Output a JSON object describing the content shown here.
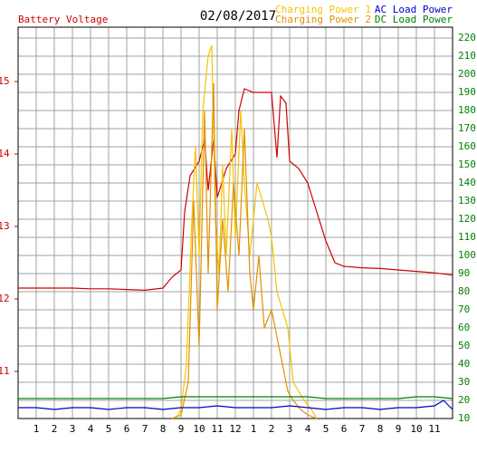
{
  "chart_data": {
    "type": "line",
    "title": "02/08/2017",
    "xlim": [
      0,
      24
    ],
    "xticks": [
      1,
      2,
      3,
      4,
      5,
      6,
      7,
      8,
      9,
      10,
      11,
      12,
      {
        "value": 13,
        "label": "1"
      },
      {
        "value": 14,
        "label": "2"
      },
      {
        "value": 15,
        "label": "3"
      },
      {
        "value": 16,
        "label": "4"
      },
      {
        "value": 17,
        "label": "5"
      },
      {
        "value": 18,
        "label": "6"
      },
      {
        "value": 19,
        "label": "7"
      },
      {
        "value": 20,
        "label": "8"
      },
      {
        "value": 21,
        "label": "9"
      },
      {
        "value": 22,
        "label": "10"
      },
      {
        "value": 23,
        "label": "11"
      }
    ],
    "ylim": [
      10.35,
      15.75
    ],
    "yticks": [
      11,
      12,
      13,
      14,
      15
    ],
    "y2lim": [
      10,
      226
    ],
    "y2ticks": [
      10,
      20,
      30,
      40,
      50,
      60,
      70,
      80,
      90,
      100,
      110,
      120,
      130,
      140,
      150,
      160,
      170,
      180,
      190,
      200,
      210,
      220
    ],
    "grid": true,
    "series": [
      {
        "name": "Battery Voltage",
        "color": "#d00000",
        "axis": "y",
        "x": [
          0,
          1,
          2,
          3,
          4,
          5,
          6,
          7,
          8,
          8.5,
          9,
          9.2,
          9.5,
          10,
          10.3,
          10.5,
          10.8,
          11,
          11.5,
          12,
          12.2,
          12.5,
          13,
          13.5,
          14,
          14.3,
          14.5,
          14.8,
          15,
          15.5,
          16,
          16.5,
          17,
          17.5,
          18,
          19,
          20,
          21,
          22,
          23,
          24
        ],
        "values": [
          12.15,
          12.15,
          12.15,
          12.15,
          12.14,
          12.14,
          12.13,
          12.12,
          12.15,
          12.3,
          12.4,
          13.2,
          13.7,
          13.9,
          14.2,
          13.5,
          14.2,
          13.4,
          13.8,
          14.0,
          14.6,
          14.9,
          14.85,
          14.85,
          14.85,
          13.95,
          14.8,
          14.7,
          13.9,
          13.8,
          13.6,
          13.2,
          12.8,
          12.5,
          12.45,
          12.43,
          12.42,
          12.4,
          12.38,
          12.36,
          12.33
        ]
      },
      {
        "name": "Charging Power 1",
        "color": "#f5c400",
        "axis": "y2",
        "x": [
          8.7,
          9,
          9.3,
          9.6,
          9.8,
          10,
          10.2,
          10.5,
          10.7,
          10.9,
          11.1,
          11.3,
          11.5,
          11.8,
          12,
          12.3,
          12.5,
          12.8,
          13.2,
          13.5,
          13.8,
          14,
          14.3,
          14.6,
          14.9,
          15.2,
          15.5,
          15.8,
          16.2,
          16.5
        ],
        "values": [
          10,
          15,
          40,
          120,
          160,
          100,
          180,
          210,
          216,
          120,
          90,
          150,
          100,
          170,
          110,
          180,
          140,
          100,
          140,
          130,
          120,
          110,
          80,
          70,
          60,
          30,
          25,
          20,
          15,
          10
        ]
      },
      {
        "name": "Charging Power 2",
        "color": "#e09000",
        "axis": "y2",
        "x": [
          8.5,
          9,
          9.4,
          9.7,
          10,
          10.3,
          10.5,
          10.8,
          11,
          11.3,
          11.6,
          11.9,
          12.2,
          12.5,
          12.8,
          13,
          13.3,
          13.6,
          14,
          14.3,
          14.6,
          14.9,
          15.2,
          15.6,
          16,
          16.5
        ],
        "values": [
          10,
          12,
          30,
          130,
          50,
          180,
          90,
          195,
          70,
          120,
          80,
          140,
          100,
          170,
          90,
          70,
          100,
          60,
          70,
          55,
          40,
          25,
          20,
          15,
          12,
          10
        ]
      },
      {
        "name": "AC Load Power",
        "color": "#0000cc",
        "axis": "y2",
        "x": [
          0,
          1,
          2,
          3,
          4,
          5,
          6,
          7,
          8,
          9,
          10,
          11,
          12,
          13,
          14,
          15,
          16,
          17,
          18,
          19,
          20,
          21,
          22,
          23,
          23.5,
          24
        ],
        "values": [
          16,
          16,
          15,
          16,
          16,
          15,
          16,
          16,
          15,
          16,
          16,
          17,
          16,
          16,
          16,
          17,
          16,
          15,
          16,
          16,
          15,
          16,
          16,
          17,
          20,
          15
        ]
      },
      {
        "name": "DC Load Power",
        "color": "#008000",
        "axis": "y2",
        "x": [
          0,
          1,
          2,
          3,
          4,
          5,
          6,
          7,
          8,
          9,
          10,
          11,
          12,
          13,
          14,
          15,
          16,
          17,
          18,
          19,
          20,
          21,
          22,
          23,
          24
        ],
        "values": [
          21,
          21,
          21,
          21,
          21,
          21,
          21,
          21,
          21,
          22,
          22,
          22,
          22,
          22,
          22,
          22,
          22,
          21,
          21,
          21,
          21,
          21,
          22,
          22,
          21
        ]
      }
    ]
  }
}
